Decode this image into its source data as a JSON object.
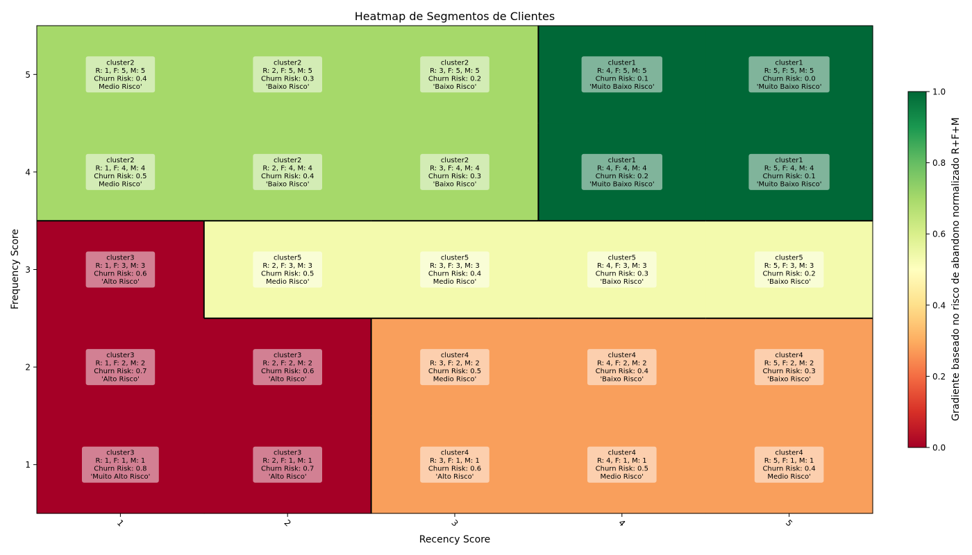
{
  "chart_data": {
    "type": "heatmap",
    "title": "Heatmap de Segmentos de Clientes",
    "xlabel": "Recency Score",
    "ylabel": "Frequency Score",
    "x_ticks": [
      "1",
      "2",
      "3",
      "4",
      "5"
    ],
    "y_ticks": [
      "1",
      "2",
      "3",
      "4",
      "5"
    ],
    "colorbar": {
      "label": "Gradiente baseado no risco de abandono normalizado R+F+M",
      "ticks": [
        "0.0",
        "0.2",
        "0.4",
        "0.6",
        "0.8",
        "1.0"
      ],
      "range": [
        0,
        1
      ],
      "colormap": "RdYlGn"
    },
    "cluster_colors": {
      "cluster1": "#006837",
      "cluster2": "#a6d96a",
      "cluster3": "#a50026",
      "cluster4": "#f99f5c",
      "cluster5": "#f3faad"
    },
    "cells": [
      {
        "r": 1,
        "f": 5,
        "cluster": "cluster2",
        "lines": [
          "cluster2",
          "R: 1, F: 5, M: 5",
          "Churn Risk: 0.4",
          "Medio Risco'"
        ]
      },
      {
        "r": 2,
        "f": 5,
        "cluster": "cluster2",
        "lines": [
          "cluster2",
          "R: 2, F: 5, M: 5",
          "Churn Risk: 0.3",
          "'Baixo Risco'"
        ]
      },
      {
        "r": 3,
        "f": 5,
        "cluster": "cluster2",
        "lines": [
          "cluster2",
          "R: 3, F: 5, M: 5",
          "Churn Risk: 0.2",
          "'Baixo Risco'"
        ]
      },
      {
        "r": 4,
        "f": 5,
        "cluster": "cluster1",
        "lines": [
          "cluster1",
          "R: 4, F: 5, M: 5",
          "Churn Risk: 0.1",
          "'Muito Baixo Risco'"
        ]
      },
      {
        "r": 5,
        "f": 5,
        "cluster": "cluster1",
        "lines": [
          "cluster1",
          "R: 5, F: 5, M: 5",
          "Churn Risk: 0.0",
          "'Muito Baixo Risco'"
        ]
      },
      {
        "r": 1,
        "f": 4,
        "cluster": "cluster2",
        "lines": [
          "cluster2",
          "R: 1, F: 4, M: 4",
          "Churn Risk: 0.5",
          "Medio Risco'"
        ]
      },
      {
        "r": 2,
        "f": 4,
        "cluster": "cluster2",
        "lines": [
          "cluster2",
          "R: 2, F: 4, M: 4",
          "Churn Risk: 0.4",
          "'Baixo Risco'"
        ]
      },
      {
        "r": 3,
        "f": 4,
        "cluster": "cluster2",
        "lines": [
          "cluster2",
          "R: 3, F: 4, M: 4",
          "Churn Risk: 0.3",
          "'Baixo Risco'"
        ]
      },
      {
        "r": 4,
        "f": 4,
        "cluster": "cluster1",
        "lines": [
          "cluster1",
          "R: 4, F: 4, M: 4",
          "Churn Risk: 0.2",
          "'Muito Baixo Risco'"
        ]
      },
      {
        "r": 5,
        "f": 4,
        "cluster": "cluster1",
        "lines": [
          "cluster1",
          "R: 5, F: 4, M: 4",
          "Churn Risk: 0.1",
          "'Muito Baixo Risco'"
        ]
      },
      {
        "r": 1,
        "f": 3,
        "cluster": "cluster3",
        "lines": [
          "cluster3",
          "R: 1, F: 3, M: 3",
          "Churn Risk: 0.6",
          "'Alto Risco'"
        ]
      },
      {
        "r": 2,
        "f": 3,
        "cluster": "cluster5",
        "lines": [
          "cluster5",
          "R: 2, F: 3, M: 3",
          "Churn Risk: 0.5",
          "Medio Risco'"
        ]
      },
      {
        "r": 3,
        "f": 3,
        "cluster": "cluster5",
        "lines": [
          "cluster5",
          "R: 3, F: 3, M: 3",
          "Churn Risk: 0.4",
          "Medio Risco'"
        ]
      },
      {
        "r": 4,
        "f": 3,
        "cluster": "cluster5",
        "lines": [
          "cluster5",
          "R: 4, F: 3, M: 3",
          "Churn Risk: 0.3",
          "'Baixo Risco'"
        ]
      },
      {
        "r": 5,
        "f": 3,
        "cluster": "cluster5",
        "lines": [
          "cluster5",
          "R: 5, F: 3, M: 3",
          "Churn Risk: 0.2",
          "'Baixo Risco'"
        ]
      },
      {
        "r": 1,
        "f": 2,
        "cluster": "cluster3",
        "lines": [
          "cluster3",
          "R: 1, F: 2, M: 2",
          "Churn Risk: 0.7",
          "'Alto Risco'"
        ]
      },
      {
        "r": 2,
        "f": 2,
        "cluster": "cluster3",
        "lines": [
          "cluster3",
          "R: 2, F: 2, M: 2",
          "Churn Risk: 0.6",
          "'Alto Risco'"
        ]
      },
      {
        "r": 3,
        "f": 2,
        "cluster": "cluster4",
        "lines": [
          "cluster4",
          "R: 3, F: 2, M: 2",
          "Churn Risk: 0.5",
          "Medio Risco'"
        ]
      },
      {
        "r": 4,
        "f": 2,
        "cluster": "cluster4",
        "lines": [
          "cluster4",
          "R: 4, F: 2, M: 2",
          "Churn Risk: 0.4",
          "'Baixo Risco'"
        ]
      },
      {
        "r": 5,
        "f": 2,
        "cluster": "cluster4",
        "lines": [
          "cluster4",
          "R: 5, F: 2, M: 2",
          "Churn Risk: 0.3",
          "'Baixo Risco'"
        ]
      },
      {
        "r": 1,
        "f": 1,
        "cluster": "cluster3",
        "lines": [
          "cluster3",
          "R: 1, F: 1, M: 1",
          "Churn Risk: 0.8",
          "'Muito Alto Risco'"
        ]
      },
      {
        "r": 2,
        "f": 1,
        "cluster": "cluster3",
        "lines": [
          "cluster3",
          "R: 2, F: 1, M: 1",
          "Churn Risk: 0.7",
          "'Alto Risco'"
        ]
      },
      {
        "r": 3,
        "f": 1,
        "cluster": "cluster4",
        "lines": [
          "cluster4",
          "R: 3, F: 1, M: 1",
          "Churn Risk: 0.6",
          "'Alto Risco'"
        ]
      },
      {
        "r": 4,
        "f": 1,
        "cluster": "cluster4",
        "lines": [
          "cluster4",
          "R: 4, F: 1, M: 1",
          "Churn Risk: 0.5",
          "Medio Risco'"
        ]
      },
      {
        "r": 5,
        "f": 1,
        "cluster": "cluster4",
        "lines": [
          "cluster4",
          "R: 5, F: 1, M: 1",
          "Churn Risk: 0.4",
          "Medio Risco'"
        ]
      }
    ]
  }
}
